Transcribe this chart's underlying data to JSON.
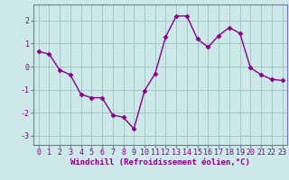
{
  "x": [
    0,
    1,
    2,
    3,
    4,
    5,
    6,
    7,
    8,
    9,
    10,
    11,
    12,
    13,
    14,
    15,
    16,
    17,
    18,
    19,
    20,
    21,
    22,
    23
  ],
  "y": [
    0.65,
    0.55,
    -0.15,
    -0.35,
    -1.2,
    -1.35,
    -1.35,
    -2.1,
    -2.2,
    -2.7,
    -1.05,
    -0.3,
    1.3,
    2.2,
    2.2,
    1.2,
    0.85,
    1.35,
    1.7,
    1.45,
    -0.05,
    -0.35,
    -0.55,
    -0.6
  ],
  "line_color": "#880088",
  "marker": "D",
  "marker_size": 2.5,
  "bg_color": "#cce8e8",
  "grid_color": "#99bbbb",
  "xlabel": "Windchill (Refroidissement éolien,°C)",
  "xlabel_fontsize": 6.5,
  "ylabel_ticks": [
    -3,
    -2,
    -1,
    0,
    1,
    2
  ],
  "ylim": [
    -3.4,
    2.7
  ],
  "xlim": [
    -0.5,
    23.5
  ],
  "tick_fontsize": 6,
  "line_width": 1.0,
  "spine_color": "#7777aa",
  "tick_color": "#7777aa",
  "label_color": "#880088"
}
